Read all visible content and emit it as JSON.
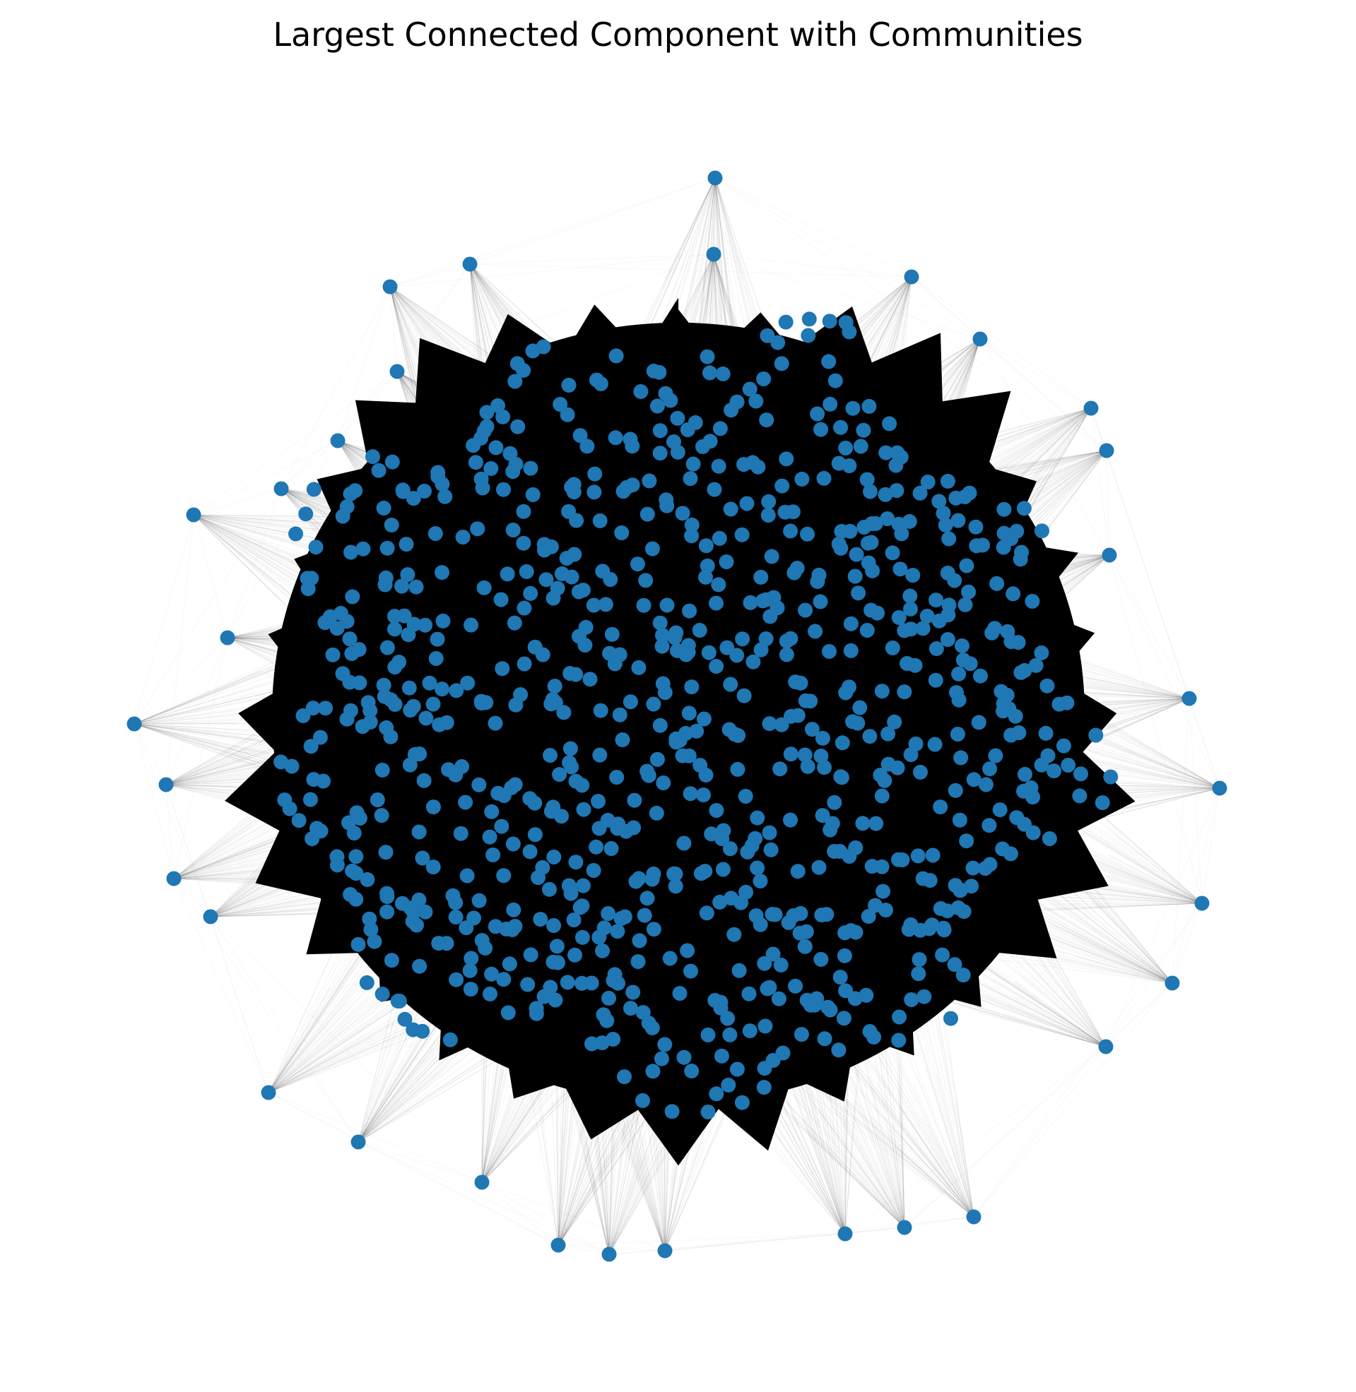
{
  "title": "Largest Connected Component with Communities",
  "colors": {
    "node": "#1f77b4",
    "edge": "#000000",
    "background": "#ffffff"
  },
  "chart_data": {
    "type": "network",
    "layout": "force-directed",
    "node_color": "#1f77b4",
    "edge_color": "#000000",
    "edge_style": "thin, low-opacity lines; the dense core appears solid black",
    "axes": "off",
    "legend": "none",
    "approx_node_count": 900,
    "outer_spikes": 32
  }
}
